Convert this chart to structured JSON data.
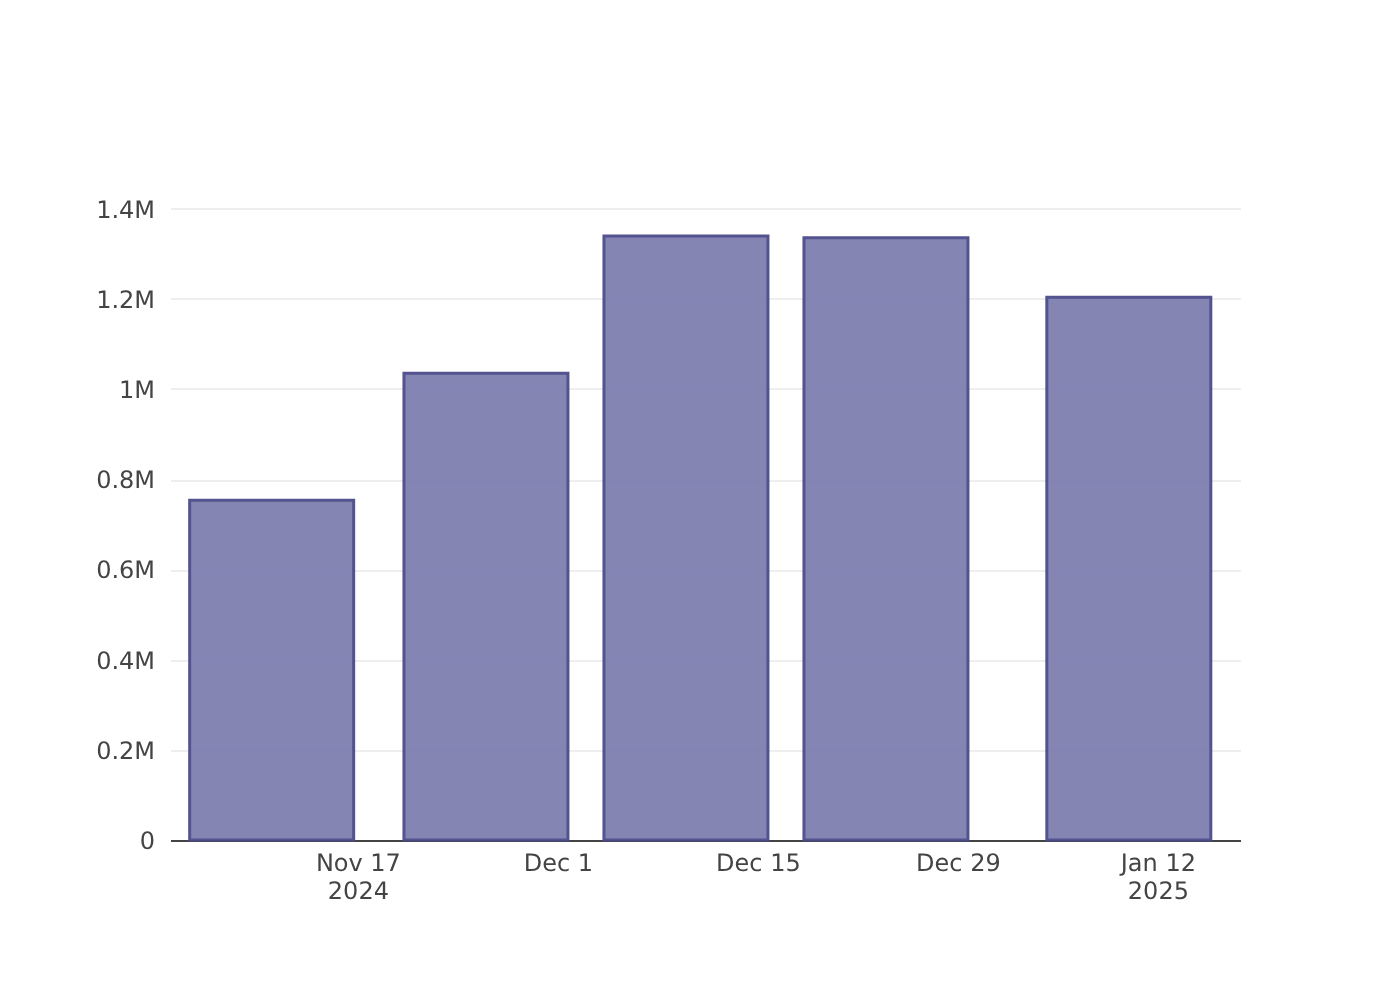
{
  "chart_data": {
    "type": "bar",
    "x": [
      "2024-11-11",
      "2024-11-26",
      "2024-12-10",
      "2024-12-24",
      "2025-01-10"
    ],
    "series": [
      {
        "color": "#7f7fb1",
        "values": [
          753000,
          1035000,
          1339000,
          1335000,
          1203000
        ]
      }
    ],
    "xlim": [
      "2024-11-04T14:00",
      "2025-01-17T02:00"
    ],
    "xticks": [
      {
        "value": "2024-11-17",
        "label": "Nov 17\n2024"
      },
      {
        "value": "2024-12-01",
        "label": "Dec 1"
      },
      {
        "value": "2024-12-15",
        "label": "Dec 15"
      },
      {
        "value": "2024-12-29",
        "label": "Dec 29"
      },
      {
        "value": "2025-01-12",
        "label": "Jan 12\n2025"
      }
    ],
    "ylim": [
      0,
      1410000
    ],
    "yticks": [
      {
        "value": 0,
        "label": "0"
      },
      {
        "value": 200000,
        "label": "0.2M"
      },
      {
        "value": 400000,
        "label": "0.4M"
      },
      {
        "value": 600000,
        "label": "0.6M"
      },
      {
        "value": 800000,
        "label": "0.8M"
      },
      {
        "value": 1000000,
        "label": "1M"
      },
      {
        "value": 1200000,
        "label": "1.2M"
      },
      {
        "value": 1400000,
        "label": "1.4M"
      }
    ],
    "grid": "y"
  }
}
